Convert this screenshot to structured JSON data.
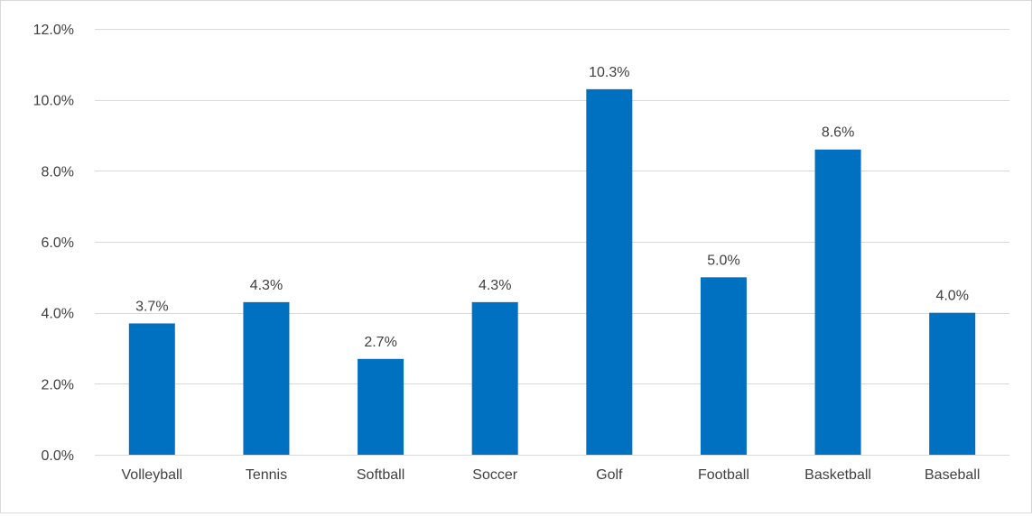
{
  "chart_data": {
    "type": "bar",
    "categories": [
      "Volleyball",
      "Tennis",
      "Softball",
      "Soccer",
      "Golf",
      "Football",
      "Basketball",
      "Baseball"
    ],
    "values": [
      3.7,
      4.3,
      2.7,
      4.3,
      10.3,
      5.0,
      8.6,
      4.0
    ],
    "data_labels": [
      "3.7%",
      "4.3%",
      "2.7%",
      "4.3%",
      "10.3%",
      "5.0%",
      "8.6%",
      "4.0%"
    ],
    "y_ticks": [
      0,
      2,
      4,
      6,
      8,
      10,
      12
    ],
    "y_tick_labels": [
      "0.0%",
      "2.0%",
      "4.0%",
      "6.0%",
      "8.0%",
      "10.0%",
      "12.0%"
    ],
    "ylim": [
      0,
      12
    ],
    "unit": "%",
    "grid": true,
    "legend": "none",
    "bar_color": "#0070C0",
    "grid_color": "#d9d9d9"
  }
}
